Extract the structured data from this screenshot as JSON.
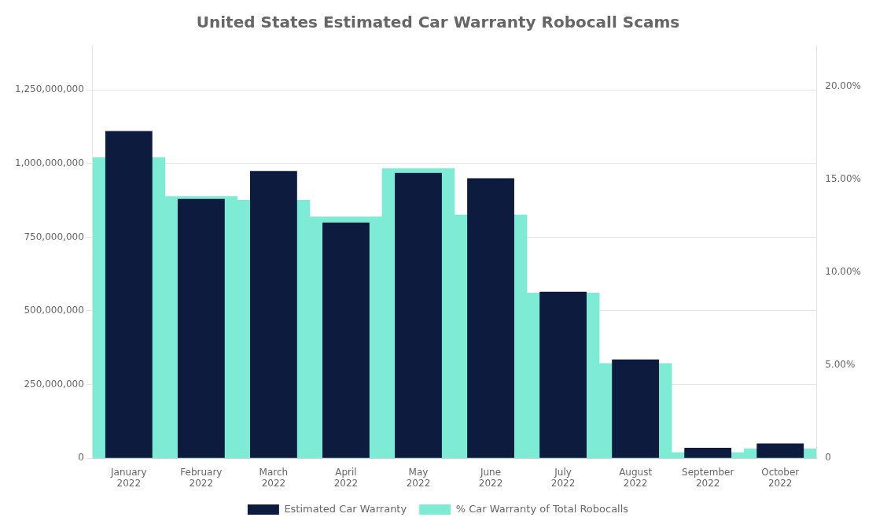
{
  "chart_data": {
    "type": "bar",
    "title": "United States Estimated Car Warranty Robocall Scams",
    "categories": [
      "January\n2022",
      "February\n2022",
      "March\n2022",
      "April\n2022",
      "May\n2022",
      "June\n2022",
      "July\n2022",
      "August\n2022",
      "September\n2022",
      "October\n2022"
    ],
    "series": [
      {
        "name": "Estimated Car Warranty",
        "type": "bar",
        "color": "#0d1b3e",
        "values": [
          1110000000,
          880000000,
          975000000,
          800000000,
          968000000,
          950000000,
          565000000,
          335000000,
          35000000,
          50000000
        ]
      },
      {
        "name": "% Car Warranty of Total Robocalls",
        "type": "area",
        "color": "#7eecd4",
        "axis": "y2",
        "values": [
          0.162,
          0.141,
          0.139,
          0.13,
          0.156,
          0.131,
          0.089,
          0.051,
          0.003,
          0.005
        ]
      }
    ],
    "ylim": [
      0,
      1400000000
    ],
    "yticks": [
      0,
      {
        "value": 250000000,
        "label": "250,000,000"
      },
      {
        "value": 500000000,
        "label": "500,000,000"
      },
      {
        "value": 750000000,
        "label": "750,000,000"
      },
      {
        "value": 1000000000,
        "label": "1,000,000,000"
      },
      {
        "value": 1250000000,
        "label": "1,250,000,000"
      }
    ],
    "y2lim": [
      0,
      0.2222
    ],
    "y2ticks": [
      0,
      {
        "value": 0.05,
        "label": "5.00%"
      },
      {
        "value": 0.1,
        "label": "10.00%"
      },
      {
        "value": 0.15,
        "label": "15.00%"
      },
      {
        "value": 0.2,
        "label": "20.00%"
      }
    ],
    "grid": true,
    "legend": "bottom"
  }
}
